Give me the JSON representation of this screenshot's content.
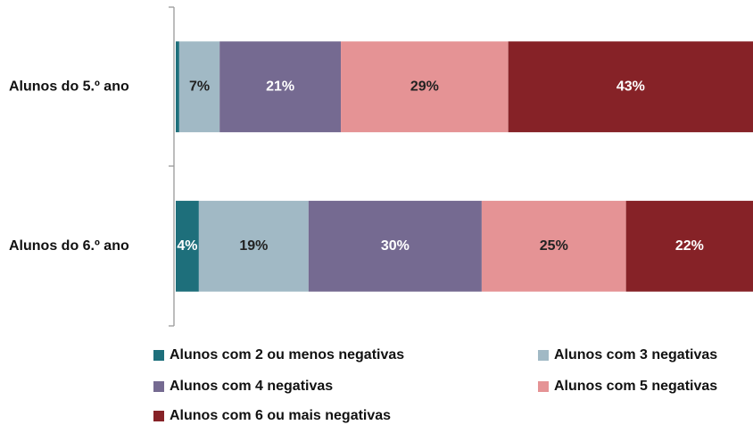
{
  "chart_data": {
    "type": "stacked-barh",
    "categories": [
      "Alunos do 5.º ano",
      "Alunos do 6.º ano"
    ],
    "series": [
      {
        "name": "Alunos com 2 ou menos negativas",
        "color": "#1e6f7b",
        "values": [
          0.6,
          4
        ],
        "value_labels": [
          null,
          "4%"
        ]
      },
      {
        "name": "Alunos com 3 negativas",
        "color": "#a1b9c5",
        "values": [
          7,
          19
        ],
        "value_labels": [
          "7%",
          "19%"
        ]
      },
      {
        "name": "Alunos com 4 negativas",
        "color": "#756a91",
        "values": [
          21,
          30
        ],
        "value_labels": [
          "21%",
          "30%"
        ]
      },
      {
        "name": "Alunos com 5 negativas",
        "color": "#e59395",
        "values": [
          29,
          25
        ],
        "value_labels": [
          "29%",
          "25%"
        ]
      },
      {
        "name": "Alunos com 6 ou mais negativas",
        "color": "#862227",
        "values": [
          43,
          22
        ],
        "value_labels": [
          "43%",
          "22%"
        ]
      }
    ],
    "xlim": [
      0,
      100
    ]
  }
}
